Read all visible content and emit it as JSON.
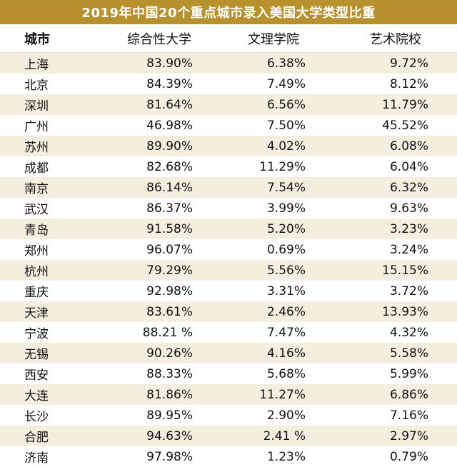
{
  "title": "2019年中国20个重点城市录入美国大学类型比重",
  "colors": {
    "title_bg": "#b8912f",
    "stripe": "#f4eedf"
  },
  "table": {
    "headers": [
      "城市",
      "综合性大学",
      "文理学院",
      "艺术院校"
    ],
    "rows": [
      [
        "上海",
        "83.90%",
        "6.38%",
        "9.72%"
      ],
      [
        "北京",
        "84.39%",
        "7.49%",
        "8.12%"
      ],
      [
        "深圳",
        "81.64%",
        "6.56%",
        "11.79%"
      ],
      [
        "广州",
        "46.98%",
        "7.50%",
        "45.52%"
      ],
      [
        "苏州",
        "89.90%",
        "4.02%",
        "6.08%"
      ],
      [
        "成都",
        "82.68%",
        "11.29%",
        "6.04%"
      ],
      [
        "南京",
        "86.14%",
        "7.54%",
        "6.32%"
      ],
      [
        "武汉",
        "86.37%",
        "3.99%",
        "9.63%"
      ],
      [
        "青岛",
        "91.58%",
        "5.20%",
        "3.23%"
      ],
      [
        "郑州",
        "96.07%",
        "0.69%",
        "3.24%"
      ],
      [
        "杭州",
        "79.29%",
        "5.56%",
        "15.15%"
      ],
      [
        "重庆",
        "92.98%",
        "3.31%",
        "3.72%"
      ],
      [
        "天津",
        "83.61%",
        "2.46%",
        "13.93%"
      ],
      [
        "宁波",
        "88.21 %",
        "7.47%",
        "4.32%"
      ],
      [
        "无锡",
        "90.26%",
        "4.16%",
        "5.58%"
      ],
      [
        "西安",
        "88.33%",
        "5.68%",
        "5.99%"
      ],
      [
        "大连",
        "81.86%",
        "11.27%",
        "6.86%"
      ],
      [
        "长沙",
        "89.95%",
        "2.90%",
        "7.16%"
      ],
      [
        "合肥",
        "94.63%",
        "2.41 %",
        "2.97%"
      ],
      [
        "济南",
        "97.98%",
        "1.23%",
        "0.79%"
      ]
    ]
  }
}
